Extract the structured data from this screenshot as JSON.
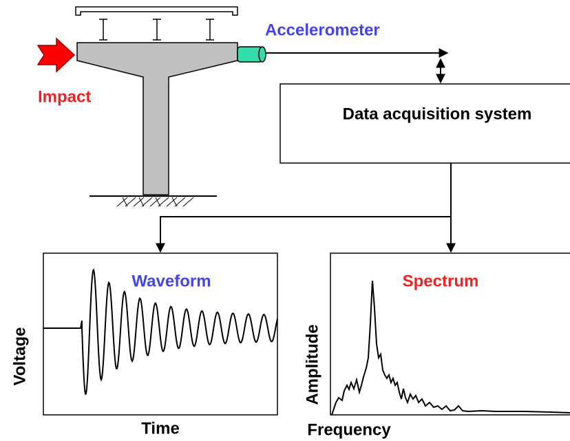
{
  "labels": {
    "accelerometer": "Accelerometer",
    "impact": "Impact",
    "daq": "Data acquisition system"
  },
  "waveform_panel": {
    "title": "Waveform",
    "y_label": "Voltage",
    "x_label": "Time"
  },
  "spectrum_panel": {
    "title": "Spectrum",
    "y_label": "Amplitude",
    "x_label": "Frequency"
  }
}
